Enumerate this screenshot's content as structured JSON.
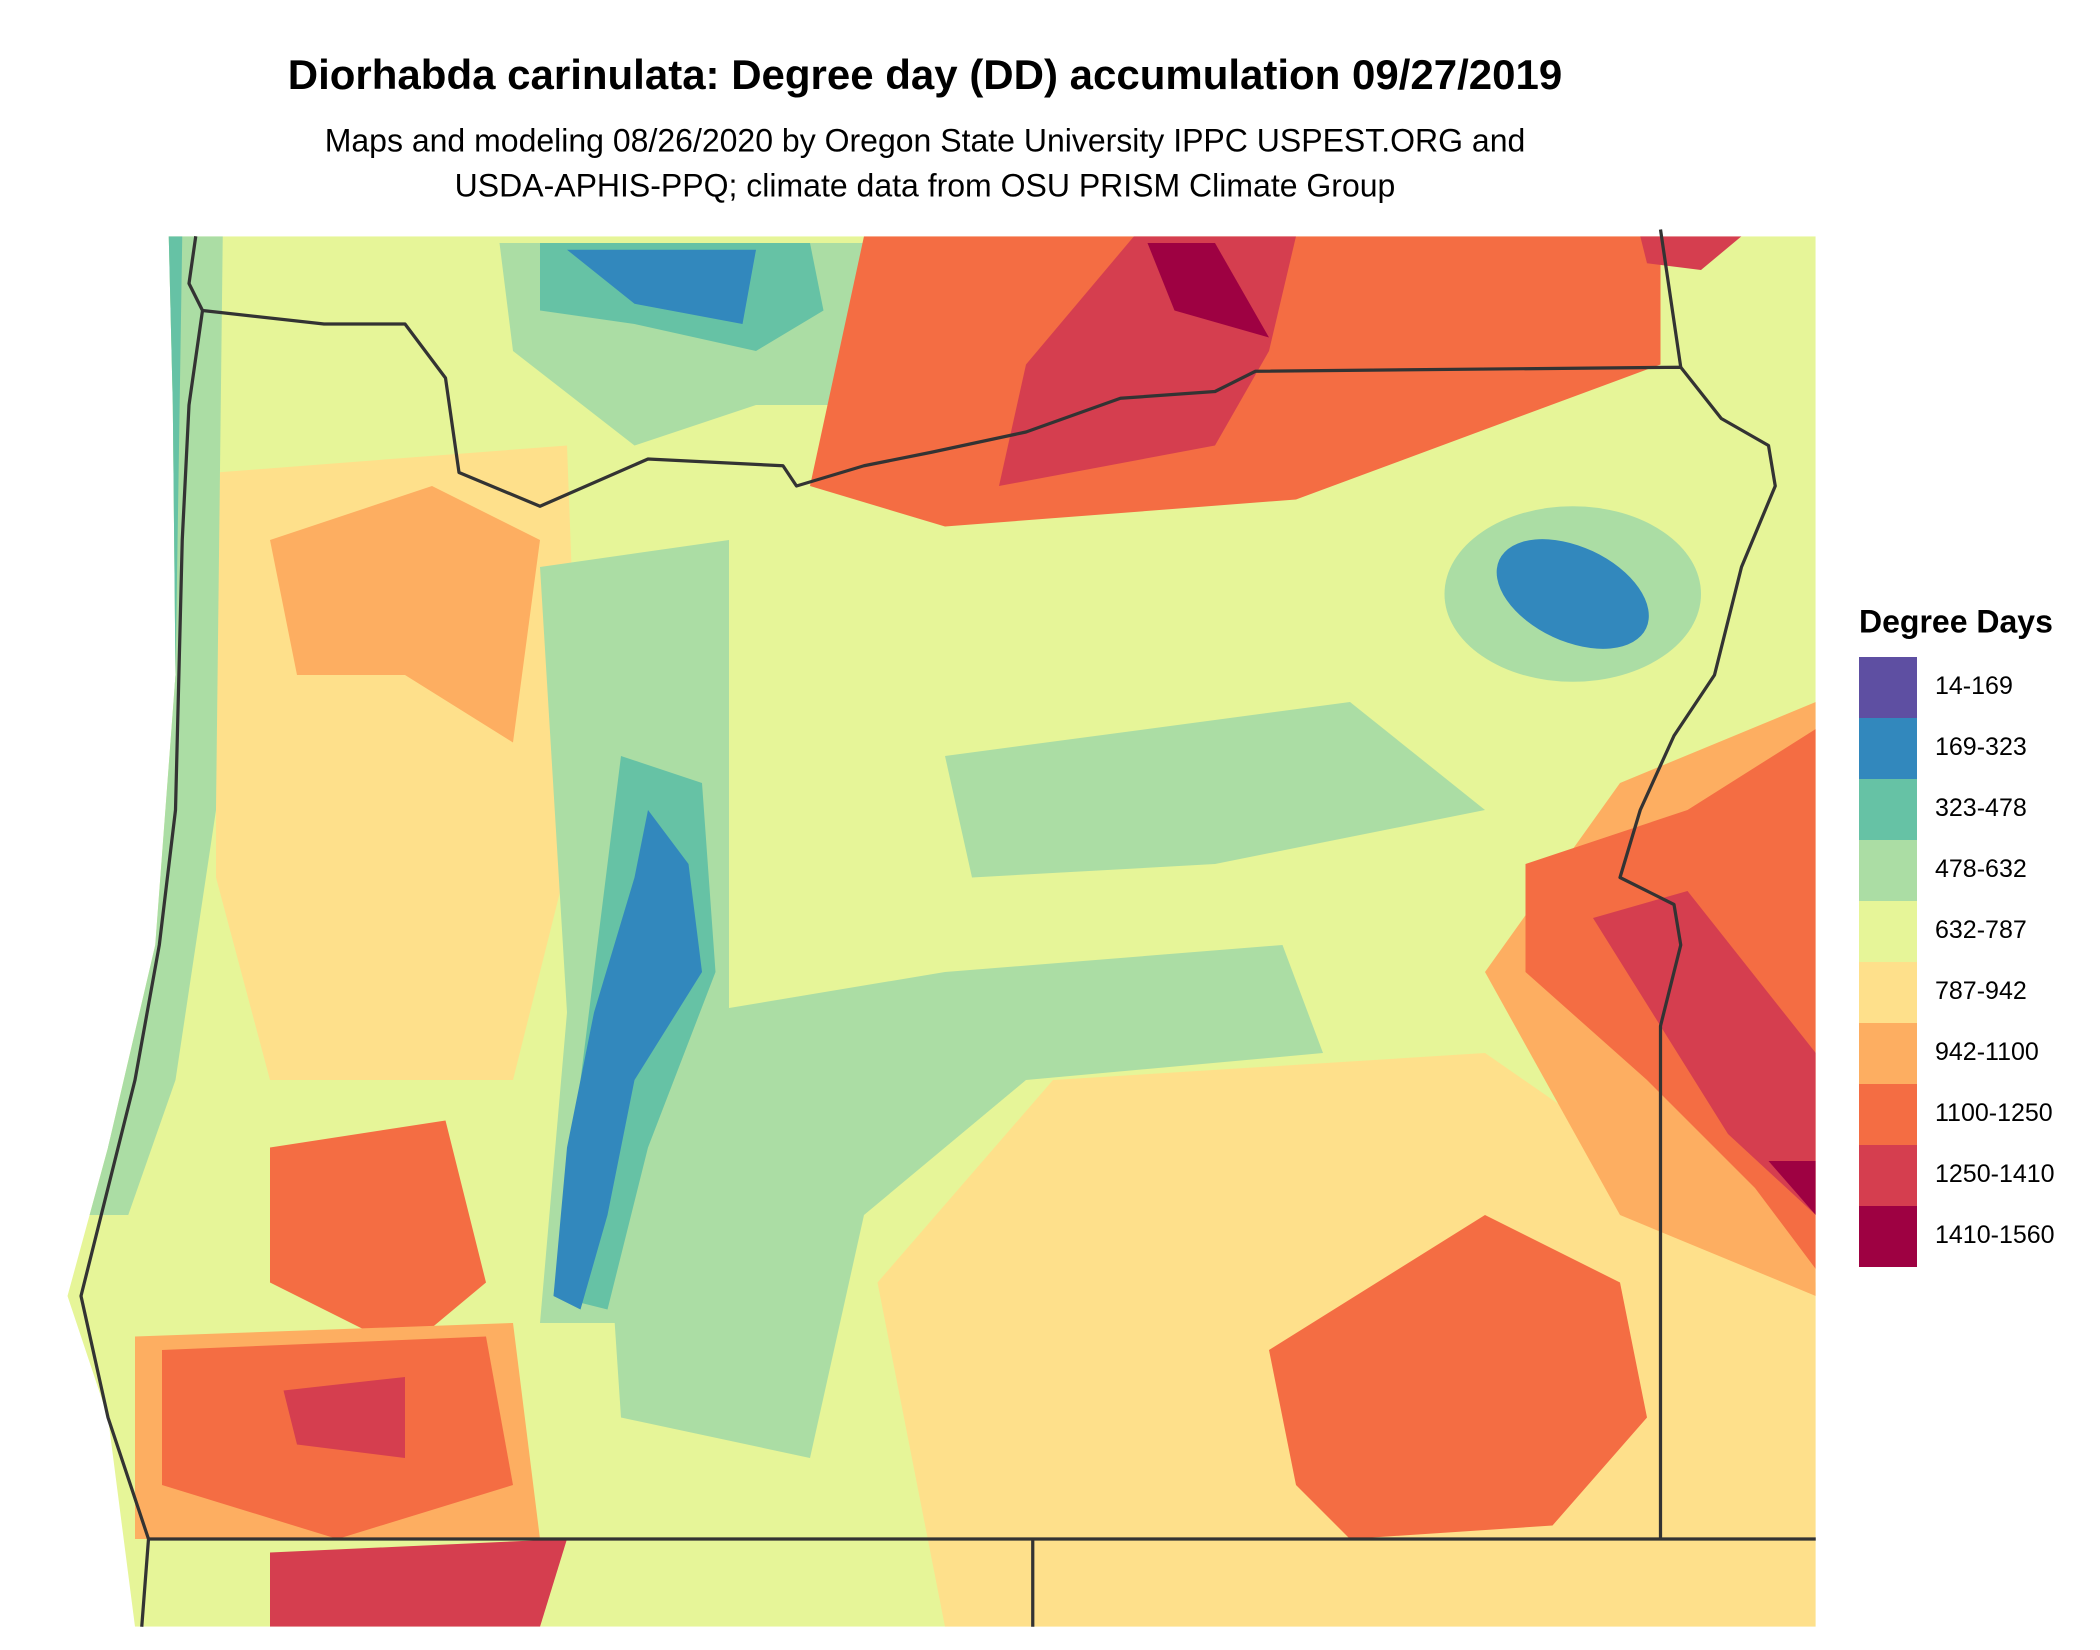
{
  "title": "Diorhabda carinulata: Degree day (DD) accumulation 09/27/2019",
  "subtitle": [
    "Maps and modeling 08/26/2020 by Oregon State University IPPC USPEST.ORG and",
    "USDA-APHIS-PPQ; climate data from OSU PRISM Climate Group"
  ],
  "legend": {
    "title": "Degree Days",
    "items": [
      {
        "label": "14-169",
        "color": "#5e4fa2"
      },
      {
        "label": "169-323",
        "color": "#3288bd"
      },
      {
        "label": "323-478",
        "color": "#66c2a5"
      },
      {
        "label": "478-632",
        "color": "#abdda4"
      },
      {
        "label": "632-787",
        "color": "#e6f598"
      },
      {
        "label": "787-942",
        "color": "#fee08b"
      },
      {
        "label": "942-1100",
        "color": "#fdae61"
      },
      {
        "label": "1100-1250",
        "color": "#f46d43"
      },
      {
        "label": "1250-1410",
        "color": "#d53e4f"
      },
      {
        "label": "1410-1560",
        "color": "#9e0142"
      }
    ]
  }
}
